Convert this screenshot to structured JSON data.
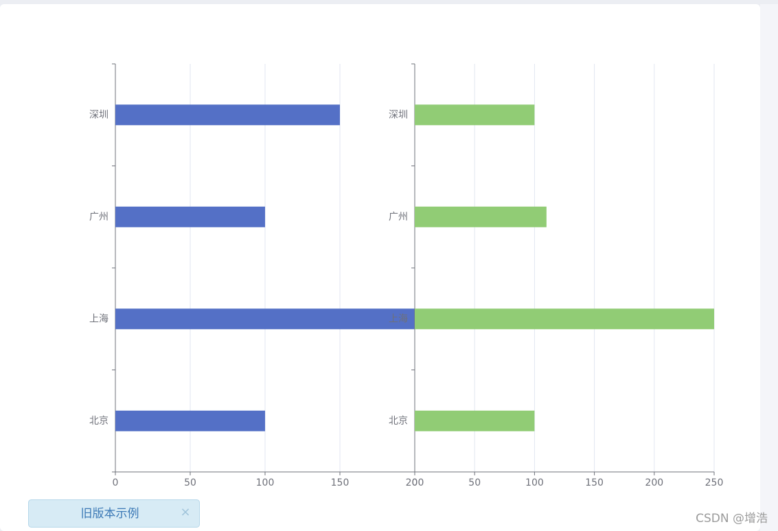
{
  "chart_data": [
    {
      "type": "bar",
      "orientation": "horizontal",
      "categories": [
        "北京",
        "上海",
        "广州",
        "深圳"
      ],
      "values": [
        100,
        200,
        100,
        150
      ],
      "color": "#5470c6",
      "xlim": [
        0,
        200
      ],
      "xticks": [
        0,
        50,
        100,
        150,
        200
      ],
      "grid": true
    },
    {
      "type": "bar",
      "orientation": "horizontal",
      "categories": [
        "北京",
        "上海",
        "广州",
        "深圳"
      ],
      "values": [
        100,
        250,
        110,
        100
      ],
      "color": "#91cc75",
      "xlim": [
        0,
        250
      ],
      "xticks": [
        0,
        50,
        100,
        150,
        200,
        250
      ],
      "grid": true
    }
  ],
  "button": {
    "label": "旧版本示例",
    "close": "×"
  },
  "watermark": "CSDN @增浩"
}
